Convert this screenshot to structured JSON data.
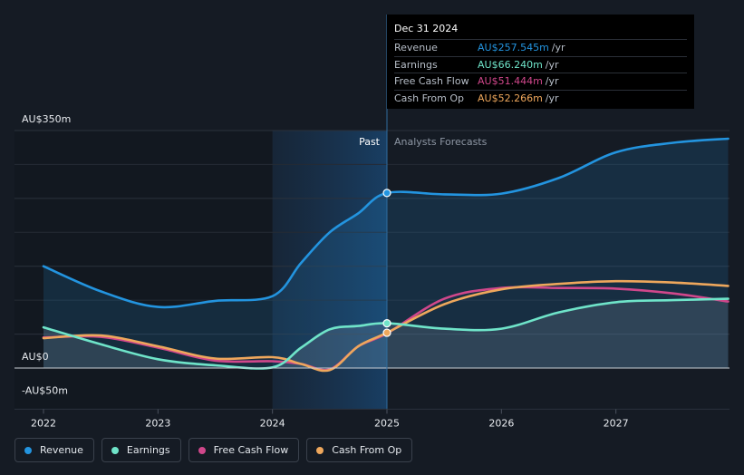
{
  "chart_data": {
    "type": "line",
    "y_ticks": [
      {
        "label": "AU$350m",
        "value": 350
      },
      {
        "label": "AU$0",
        "value": 0
      },
      {
        "label": "-AU$50m",
        "value": -50
      }
    ],
    "x_ticks": [
      "2022",
      "2023",
      "2024",
      "2025",
      "2026",
      "2027"
    ],
    "x_range": [
      2021.75,
      2027.98
    ],
    "y_range": [
      -50,
      350
    ],
    "past_label": "Past",
    "forecast_label": "Analysts Forecasts",
    "divider_x": 2025.0,
    "shade_start_x": 2024.0,
    "series": [
      {
        "name": "Revenue",
        "color": "#2394df",
        "values": [
          [
            2022.0,
            150
          ],
          [
            2022.5,
            113
          ],
          [
            2023.0,
            90
          ],
          [
            2023.5,
            99
          ],
          [
            2024.0,
            106
          ],
          [
            2024.25,
            155
          ],
          [
            2024.5,
            200
          ],
          [
            2024.75,
            228
          ],
          [
            2025.0,
            258
          ],
          [
            2025.5,
            256
          ],
          [
            2026.0,
            257
          ],
          [
            2026.5,
            280
          ],
          [
            2027.0,
            318
          ],
          [
            2027.5,
            332
          ],
          [
            2027.98,
            338
          ]
        ]
      },
      {
        "name": "Earnings",
        "color": "#6fe4c9",
        "values": [
          [
            2022.0,
            60
          ],
          [
            2022.5,
            35
          ],
          [
            2023.0,
            13
          ],
          [
            2023.5,
            4
          ],
          [
            2024.0,
            1
          ],
          [
            2024.25,
            30
          ],
          [
            2024.5,
            57
          ],
          [
            2024.75,
            62
          ],
          [
            2025.0,
            66
          ],
          [
            2025.5,
            58
          ],
          [
            2026.0,
            58
          ],
          [
            2026.5,
            82
          ],
          [
            2027.0,
            97
          ],
          [
            2027.5,
            100
          ],
          [
            2027.98,
            102
          ]
        ]
      },
      {
        "name": "Free Cash Flow",
        "color": "#d0478b",
        "values": [
          [
            2022.0,
            45
          ],
          [
            2022.5,
            46
          ],
          [
            2023.0,
            30
          ],
          [
            2023.5,
            11
          ],
          [
            2024.0,
            10
          ],
          [
            2024.25,
            6
          ],
          [
            2024.5,
            -2
          ],
          [
            2024.75,
            32
          ],
          [
            2025.0,
            51
          ],
          [
            2025.5,
            102
          ],
          [
            2026.0,
            118
          ],
          [
            2026.5,
            118
          ],
          [
            2027.0,
            117
          ],
          [
            2027.5,
            110
          ],
          [
            2027.98,
            98
          ]
        ]
      },
      {
        "name": "Cash From Op",
        "color": "#eea75c",
        "values": [
          [
            2022.0,
            44
          ],
          [
            2022.5,
            48
          ],
          [
            2023.0,
            32
          ],
          [
            2023.5,
            14
          ],
          [
            2024.0,
            16
          ],
          [
            2024.25,
            6
          ],
          [
            2024.5,
            -3
          ],
          [
            2024.75,
            32
          ],
          [
            2025.0,
            52
          ],
          [
            2025.5,
            94
          ],
          [
            2026.0,
            116
          ],
          [
            2026.5,
            124
          ],
          [
            2027.0,
            128
          ],
          [
            2027.5,
            126
          ],
          [
            2027.98,
            121
          ]
        ]
      }
    ]
  },
  "tooltip": {
    "date": "Dec 31 2024",
    "rows": [
      {
        "label": "Revenue",
        "value": "AU$257.545m",
        "unit": "/yr",
        "color": "#2394df"
      },
      {
        "label": "Earnings",
        "value": "AU$66.240m",
        "unit": "/yr",
        "color": "#6fe4c9"
      },
      {
        "label": "Free Cash Flow",
        "value": "AU$51.444m",
        "unit": "/yr",
        "color": "#d0478b"
      },
      {
        "label": "Cash From Op",
        "value": "AU$52.266m",
        "unit": "/yr",
        "color": "#eea75c"
      }
    ]
  },
  "legend": [
    {
      "label": "Revenue",
      "color": "#2394df"
    },
    {
      "label": "Earnings",
      "color": "#6fe4c9"
    },
    {
      "label": "Free Cash Flow",
      "color": "#d0478b"
    },
    {
      "label": "Cash From Op",
      "color": "#eea75c"
    }
  ]
}
